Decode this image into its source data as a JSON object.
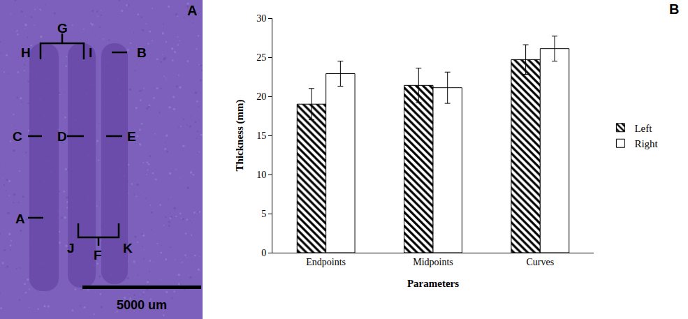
{
  "panel_a": {
    "panel_label": "A",
    "labels": [
      "A",
      "B",
      "C",
      "D",
      "E",
      "F",
      "G",
      "H",
      "I",
      "J",
      "K"
    ],
    "scale_bar": "5000 um"
  },
  "chart_data": {
    "type": "bar",
    "panel_label": "B",
    "categories": [
      "Endpoints",
      "Midpoints",
      "Curves"
    ],
    "series": [
      {
        "name": "Left",
        "color": "#000000",
        "marker": "hatched",
        "values": [
          19.0,
          21.4,
          24.7
        ],
        "error": [
          2.0,
          2.2,
          1.9
        ]
      },
      {
        "name": "Right",
        "color": "#ffffff",
        "values": [
          22.9,
          21.1,
          26.1
        ],
        "error": [
          1.6,
          2.0,
          1.6
        ]
      }
    ],
    "x_label": "Parameters",
    "y_label": "Thickness (mm)",
    "ylim": [
      0,
      30
    ],
    "yticks": [
      0,
      5,
      10,
      15,
      20,
      25,
      30
    ],
    "grid": false,
    "legend": "right"
  }
}
